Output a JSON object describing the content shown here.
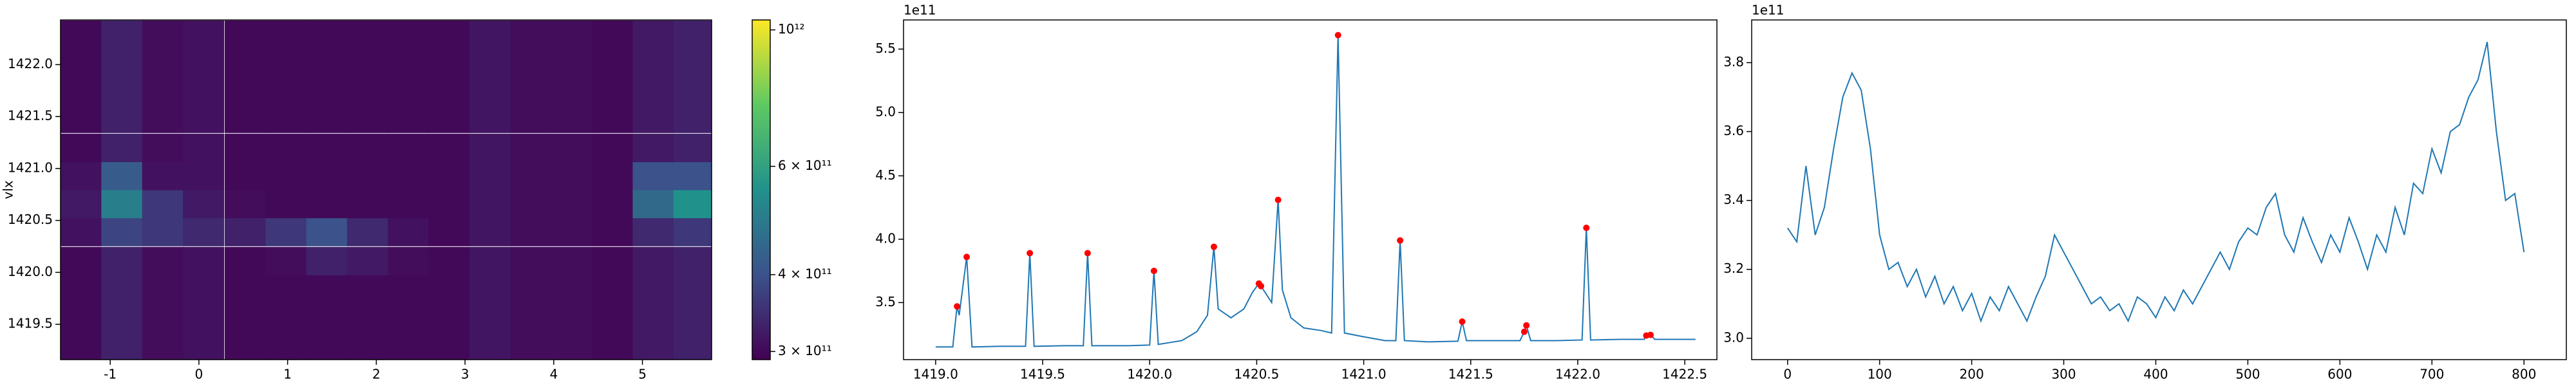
{
  "chart_data": [
    {
      "type": "heatmap",
      "ylabel": "vlx",
      "colormap": "viridis",
      "clog": true,
      "x": [
        -1.33,
        -0.87,
        -0.41,
        0.05,
        0.52,
        0.98,
        1.44,
        1.9,
        2.36,
        2.82,
        3.28,
        3.74,
        4.2,
        4.66,
        5.12,
        5.58
      ],
      "y": [
        1419.3,
        1419.57,
        1419.84,
        1420.11,
        1420.39,
        1420.66,
        1420.93,
        1421.2,
        1421.48,
        1421.75,
        1422.02,
        1422.29
      ],
      "z": [
        [
          300000000000.0,
          330000000000.0,
          305000000000.0,
          310000000000.0,
          300000000000.0,
          300000000000.0,
          300000000000.0,
          300000000000.0,
          300000000000.0,
          300000000000.0,
          315000000000.0,
          305000000000.0,
          305000000000.0,
          300000000000.0,
          320000000000.0,
          330000000000.0
        ],
        [
          300000000000.0,
          330000000000.0,
          305000000000.0,
          310000000000.0,
          300000000000.0,
          300000000000.0,
          300000000000.0,
          300000000000.0,
          300000000000.0,
          300000000000.0,
          315000000000.0,
          305000000000.0,
          305000000000.0,
          300000000000.0,
          320000000000.0,
          330000000000.0
        ],
        [
          300000000000.0,
          330000000000.0,
          305000000000.0,
          310000000000.0,
          300000000000.0,
          300000000000.0,
          300000000000.0,
          300000000000.0,
          300000000000.0,
          300000000000.0,
          315000000000.0,
          305000000000.0,
          305000000000.0,
          300000000000.0,
          320000000000.0,
          330000000000.0
        ],
        [
          300000000000.0,
          330000000000.0,
          305000000000.0,
          310000000000.0,
          300000000000.0,
          305000000000.0,
          330000000000.0,
          320000000000.0,
          305000000000.0,
          300000000000.0,
          315000000000.0,
          305000000000.0,
          305000000000.0,
          300000000000.0,
          320000000000.0,
          330000000000.0
        ],
        [
          310000000000.0,
          380000000000.0,
          360000000000.0,
          340000000000.0,
          330000000000.0,
          360000000000.0,
          400000000000.0,
          340000000000.0,
          310000000000.0,
          300000000000.0,
          315000000000.0,
          305000000000.0,
          305000000000.0,
          300000000000.0,
          340000000000.0,
          360000000000.0
        ],
        [
          320000000000.0,
          500000000000.0,
          360000000000.0,
          320000000000.0,
          305000000000.0,
          300000000000.0,
          300000000000.0,
          300000000000.0,
          300000000000.0,
          300000000000.0,
          315000000000.0,
          305000000000.0,
          305000000000.0,
          300000000000.0,
          450000000000.0,
          550000000000.0
        ],
        [
          310000000000.0,
          420000000000.0,
          310000000000.0,
          310000000000.0,
          300000000000.0,
          300000000000.0,
          300000000000.0,
          300000000000.0,
          300000000000.0,
          300000000000.0,
          315000000000.0,
          305000000000.0,
          305000000000.0,
          300000000000.0,
          400000000000.0,
          400000000000.0
        ],
        [
          300000000000.0,
          330000000000.0,
          305000000000.0,
          310000000000.0,
          300000000000.0,
          300000000000.0,
          300000000000.0,
          300000000000.0,
          300000000000.0,
          300000000000.0,
          315000000000.0,
          305000000000.0,
          305000000000.0,
          300000000000.0,
          320000000000.0,
          330000000000.0
        ],
        [
          300000000000.0,
          330000000000.0,
          305000000000.0,
          310000000000.0,
          300000000000.0,
          300000000000.0,
          300000000000.0,
          300000000000.0,
          300000000000.0,
          300000000000.0,
          315000000000.0,
          305000000000.0,
          305000000000.0,
          300000000000.0,
          320000000000.0,
          330000000000.0
        ],
        [
          300000000000.0,
          330000000000.0,
          305000000000.0,
          310000000000.0,
          300000000000.0,
          300000000000.0,
          300000000000.0,
          300000000000.0,
          300000000000.0,
          300000000000.0,
          315000000000.0,
          305000000000.0,
          305000000000.0,
          300000000000.0,
          320000000000.0,
          330000000000.0
        ],
        [
          300000000000.0,
          330000000000.0,
          305000000000.0,
          310000000000.0,
          300000000000.0,
          300000000000.0,
          300000000000.0,
          300000000000.0,
          300000000000.0,
          300000000000.0,
          315000000000.0,
          305000000000.0,
          305000000000.0,
          300000000000.0,
          320000000000.0,
          330000000000.0
        ],
        [
          300000000000.0,
          330000000000.0,
          305000000000.0,
          310000000000.0,
          300000000000.0,
          300000000000.0,
          300000000000.0,
          300000000000.0,
          300000000000.0,
          300000000000.0,
          315000000000.0,
          305000000000.0,
          305000000000.0,
          300000000000.0,
          320000000000.0,
          330000000000.0
        ]
      ],
      "xlim": [
        -1.56,
        5.78
      ],
      "ylim": [
        1419.16,
        1422.43
      ],
      "xticks": [
        -1,
        0,
        1,
        2,
        3,
        4,
        5
      ],
      "yticks": [
        1419.5,
        {
          "value": 1420,
          "label": "1420.0"
        },
        1420.5,
        {
          "value": 1421,
          "label": "1421.0"
        },
        1421.5,
        {
          "value": 1422,
          "label": "1422.0"
        }
      ],
      "clim": [
        291000000000.0,
        1038000000000.0
      ],
      "cticks": [
        {
          "value": 300000000000.0,
          "label": "3 × 10¹¹"
        },
        {
          "value": 400000000000.0,
          "label": "4 × 10¹¹"
        },
        {
          "value": 600000000000.0,
          "label": "6 × 10¹¹"
        },
        {
          "value": 1000000000000.0,
          "label": "10¹²"
        }
      ]
    },
    {
      "type": "line",
      "color": "#1f77b4",
      "y_offset_label": "1e11",
      "x": [
        1419.0,
        1419.08,
        1419.1,
        1419.11,
        1419.145,
        1419.17,
        1419.3,
        1419.42,
        1419.44,
        1419.46,
        1419.6,
        1419.69,
        1419.71,
        1419.73,
        1419.9,
        1420.0,
        1420.02,
        1420.04,
        1420.15,
        1420.22,
        1420.27,
        1420.3,
        1420.32,
        1420.38,
        1420.44,
        1420.48,
        1420.51,
        1420.52,
        1420.57,
        1420.6,
        1420.62,
        1420.66,
        1420.72,
        1420.8,
        1420.85,
        1420.88,
        1420.91,
        1421.0,
        1421.1,
        1421.15,
        1421.17,
        1421.19,
        1421.3,
        1421.44,
        1421.46,
        1421.48,
        1421.6,
        1421.73,
        1421.75,
        1421.76,
        1421.78,
        1421.9,
        1422.02,
        1422.04,
        1422.06,
        1422.2,
        1422.31,
        1422.32,
        1422.34,
        1422.36,
        1422.55
      ],
      "values": [
        3.15,
        3.15,
        3.47,
        3.4,
        3.86,
        3.15,
        3.155,
        3.155,
        3.89,
        3.155,
        3.16,
        3.16,
        3.89,
        3.16,
        3.16,
        3.165,
        3.75,
        3.17,
        3.2,
        3.27,
        3.4,
        3.94,
        3.45,
        3.38,
        3.45,
        3.58,
        3.65,
        3.63,
        3.5,
        4.31,
        3.6,
        3.38,
        3.3,
        3.28,
        3.26,
        5.61,
        3.26,
        3.23,
        3.2,
        3.2,
        3.99,
        3.2,
        3.19,
        3.195,
        3.35,
        3.2,
        3.2,
        3.2,
        3.27,
        3.32,
        3.2,
        3.2,
        3.205,
        4.09,
        3.205,
        3.21,
        3.21,
        3.24,
        3.245,
        3.21,
        3.21
      ],
      "peaks": {
        "color": "#ff0000",
        "x": [
          1419.1,
          1419.145,
          1419.44,
          1419.71,
          1420.02,
          1420.3,
          1420.51,
          1420.52,
          1420.6,
          1420.88,
          1421.17,
          1421.46,
          1421.75,
          1421.76,
          1422.04,
          1422.32,
          1422.34
        ],
        "values": [
          3.47,
          3.86,
          3.89,
          3.89,
          3.75,
          3.94,
          3.65,
          3.63,
          4.31,
          5.61,
          3.99,
          3.35,
          3.27,
          3.32,
          4.09,
          3.24,
          3.245
        ]
      },
      "xlim": [
        1418.85,
        1422.65
      ],
      "ylim": [
        3.05,
        5.73
      ],
      "xticks": [
        {
          "value": 1419,
          "label": "1419.0"
        },
        1419.5,
        {
          "value": 1420,
          "label": "1420.0"
        },
        1420.5,
        {
          "value": 1421,
          "label": "1421.0"
        },
        1421.5,
        {
          "value": 1422,
          "label": "1422.0"
        },
        1422.5
      ],
      "yticks": [
        3.5,
        {
          "value": 4,
          "label": "4.0"
        },
        4.5,
        {
          "value": 5,
          "label": "5.0"
        },
        5.5
      ]
    },
    {
      "type": "line",
      "color": "#1f77b4",
      "y_offset_label": "1e11",
      "x": [
        0,
        10,
        20,
        30,
        40,
        50,
        60,
        70,
        80,
        90,
        100,
        110,
        120,
        130,
        140,
        150,
        160,
        170,
        180,
        190,
        200,
        210,
        220,
        230,
        240,
        250,
        260,
        270,
        280,
        290,
        300,
        310,
        320,
        330,
        340,
        350,
        360,
        370,
        380,
        390,
        400,
        410,
        420,
        430,
        440,
        450,
        460,
        470,
        480,
        490,
        500,
        510,
        520,
        530,
        540,
        550,
        560,
        570,
        580,
        590,
        600,
        610,
        620,
        630,
        640,
        650,
        660,
        670,
        680,
        690,
        700,
        710,
        720,
        730,
        740,
        750,
        760,
        770,
        780,
        790,
        800
      ],
      "values": [
        3.32,
        3.28,
        3.5,
        3.3,
        3.38,
        3.55,
        3.7,
        3.77,
        3.72,
        3.55,
        3.3,
        3.2,
        3.22,
        3.15,
        3.2,
        3.12,
        3.18,
        3.1,
        3.15,
        3.08,
        3.13,
        3.05,
        3.12,
        3.08,
        3.15,
        3.1,
        3.05,
        3.12,
        3.18,
        3.3,
        3.25,
        3.2,
        3.15,
        3.1,
        3.12,
        3.08,
        3.1,
        3.05,
        3.12,
        3.1,
        3.06,
        3.12,
        3.08,
        3.14,
        3.1,
        3.15,
        3.2,
        3.25,
        3.2,
        3.28,
        3.32,
        3.3,
        3.38,
        3.42,
        3.3,
        3.25,
        3.35,
        3.28,
        3.22,
        3.3,
        3.25,
        3.35,
        3.28,
        3.2,
        3.3,
        3.25,
        3.38,
        3.3,
        3.45,
        3.42,
        3.55,
        3.48,
        3.6,
        3.62,
        3.7,
        3.75,
        3.86,
        3.6,
        3.4,
        3.42,
        3.25
      ],
      "xlim": [
        -39,
        846
      ],
      "ylim": [
        2.938,
        3.924
      ],
      "xticks": [
        0,
        100,
        200,
        300,
        400,
        500,
        600,
        700,
        800
      ],
      "yticks": [
        {
          "value": 3,
          "label": "3.0"
        },
        3.2,
        3.4,
        3.6,
        3.8
      ]
    }
  ]
}
